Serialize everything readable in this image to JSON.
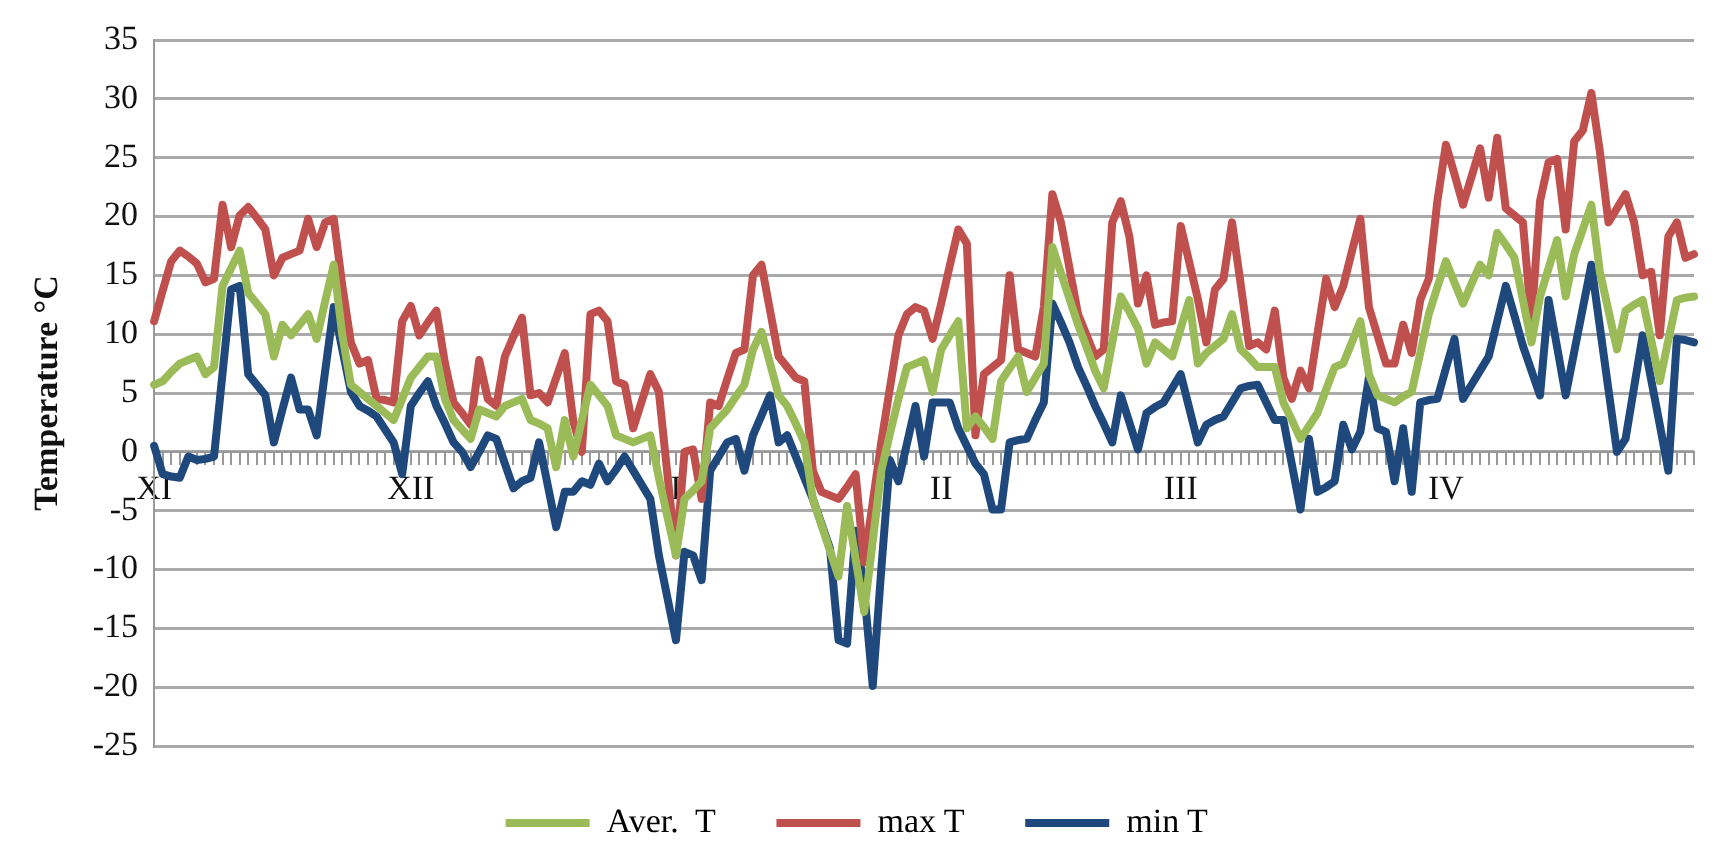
{
  "chart_data": {
    "type": "line",
    "ylabel": "Temperature °C",
    "categories": [
      "XI",
      null,
      null,
      null,
      null,
      null,
      null,
      null,
      null,
      null,
      null,
      null,
      null,
      null,
      null,
      null,
      null,
      null,
      null,
      null,
      null,
      null,
      null,
      null,
      null,
      null,
      null,
      null,
      null,
      null,
      "XII",
      null,
      null,
      null,
      null,
      null,
      null,
      null,
      null,
      null,
      null,
      null,
      null,
      null,
      null,
      null,
      null,
      null,
      null,
      null,
      null,
      null,
      null,
      null,
      null,
      null,
      null,
      null,
      null,
      null,
      null,
      "I",
      null,
      null,
      null,
      null,
      null,
      null,
      null,
      null,
      null,
      null,
      null,
      null,
      null,
      null,
      null,
      null,
      null,
      null,
      null,
      null,
      null,
      null,
      null,
      null,
      null,
      null,
      null,
      null,
      null,
      null,
      "II",
      null,
      null,
      null,
      null,
      null,
      null,
      null,
      null,
      null,
      null,
      null,
      null,
      null,
      null,
      null,
      null,
      null,
      null,
      null,
      null,
      null,
      null,
      null,
      null,
      null,
      null,
      null,
      "III",
      null,
      null,
      null,
      null,
      null,
      null,
      null,
      null,
      null,
      null,
      null,
      null,
      null,
      null,
      null,
      null,
      null,
      null,
      null,
      null,
      null,
      null,
      null,
      null,
      null,
      null,
      null,
      null,
      null,
      null,
      "IV",
      null,
      null,
      null,
      null,
      null,
      null,
      null,
      null,
      null,
      null,
      null,
      null,
      null,
      null,
      null,
      null,
      null,
      null,
      null,
      null,
      null,
      null,
      null,
      null,
      null,
      null,
      null,
      null,
      null
    ],
    "ylim": [
      -25,
      35
    ],
    "yticks": [
      -25,
      -20,
      -15,
      -10,
      -5,
      0,
      5,
      10,
      15,
      20,
      25,
      30,
      35
    ],
    "grid": "y",
    "legend": "bottom",
    "marker": "none",
    "line_style": "solid",
    "series": [
      {
        "name": "Aver.  T",
        "color": "#9bbb59",
        "values": [
          5.7,
          6,
          6.8,
          7.5,
          7.8,
          8.1,
          6.6,
          7.2,
          14.1,
          15.6,
          17.1,
          13.5,
          12.6,
          11.7,
          8.1,
          10.8,
          9.9,
          10.8,
          11.7,
          9.6,
          12.8,
          15.9,
          9.9,
          5.7,
          5.1,
          4.5,
          3.9,
          3.3,
          2.7,
          4.5,
          6.3,
          7.2,
          8.1,
          8.1,
          4.5,
          2.7,
          1.9,
          1.1,
          3.6,
          3.3,
          3,
          3.9,
          4.2,
          4.5,
          2.7,
          2.4,
          2,
          -1.3,
          2.7,
          -0.4,
          2.7,
          5.7,
          4.8,
          3.9,
          1.4,
          1.1,
          0.8,
          1.1,
          1.4,
          -2.2,
          -5.5,
          -8.8,
          -4,
          -3.3,
          -2.5,
          2,
          2.8,
          3.6,
          4.7,
          5.7,
          8.7,
          10.2,
          7.5,
          4.8,
          3.9,
          2.4,
          0.8,
          -4,
          -6.2,
          -8.4,
          -10.6,
          -4.6,
          -9.1,
          -13.6,
          -7.6,
          -1.6,
          1.5,
          4.5,
          7.2,
          7.5,
          7.8,
          5.1,
          8.7,
          9.9,
          11.1,
          2,
          3,
          2.1,
          1.1,
          6,
          7.1,
          8.1,
          5.1,
          6.3,
          7.5,
          17.4,
          15.2,
          13,
          10.8,
          8.9,
          6.9,
          5.4,
          9.3,
          13.2,
          11.9,
          10.5,
          7.5,
          9.3,
          8.7,
          8.1,
          10.5,
          12.9,
          7.5,
          8.4,
          9,
          9.6,
          11.7,
          8.7,
          8,
          7.2,
          7.2,
          7.2,
          4.2,
          2.7,
          1.1,
          2.2,
          3.3,
          5.3,
          7.2,
          7.5,
          9.3,
          11.1,
          6.6,
          4.8,
          4.5,
          4.2,
          4.7,
          5.1,
          8.4,
          11.7,
          14,
          16.2,
          14.4,
          12.6,
          14.3,
          15.9,
          15,
          18.6,
          17.6,
          16.5,
          12.9,
          9.3,
          13.2,
          15.6,
          18,
          13.2,
          16.8,
          18.9,
          21,
          15.3,
          12,
          8.7,
          12,
          12.5,
          12.9,
          9.5,
          6,
          9.5,
          12.9,
          13.1,
          13.2
        ]
      },
      {
        "name": "max T",
        "color": "#c0504d",
        "values": [
          11.1,
          13.7,
          16.2,
          17.1,
          16.6,
          16,
          14.4,
          14.7,
          21,
          17.4,
          20.1,
          20.8,
          19.9,
          18.9,
          15,
          16.5,
          16.8,
          17.1,
          19.8,
          17.4,
          19.5,
          19.8,
          14.1,
          9.3,
          7.5,
          7.8,
          4.5,
          4.4,
          4.2,
          11.1,
          12.4,
          9.9,
          11,
          12,
          7.5,
          4.2,
          3.3,
          2.3,
          7.8,
          4.5,
          3.9,
          8.1,
          9.8,
          11.4,
          4.8,
          5,
          4.2,
          6.3,
          8.4,
          2.6,
          0,
          11.7,
          12,
          11.1,
          6,
          5.7,
          2,
          4.3,
          6.6,
          5.1,
          -1.9,
          -8.8,
          0,
          0.2,
          -4,
          4.2,
          3.9,
          6.2,
          8.4,
          8.7,
          15,
          15.9,
          12,
          8.1,
          7.2,
          6.3,
          6,
          -1.6,
          -3.4,
          -3.7,
          -4,
          -3,
          -1.9,
          -9.4,
          -4.3,
          0.8,
          5.4,
          9.9,
          11.7,
          12.3,
          12,
          9.6,
          12.6,
          15.8,
          18.9,
          17.7,
          1.4,
          6.6,
          7.2,
          7.8,
          15,
          8.7,
          8.4,
          8.1,
          12.3,
          21.9,
          19.5,
          15.6,
          11.7,
          9.9,
          8.1,
          8.7,
          19.5,
          21.3,
          18.3,
          12.6,
          15,
          10.8,
          11,
          11.1,
          19.2,
          16.1,
          13,
          9.3,
          13.8,
          14.7,
          19.5,
          14.3,
          9,
          9.3,
          8.7,
          12,
          6.3,
          4.5,
          6.9,
          5.4,
          10.1,
          14.7,
          12.3,
          14.1,
          17,
          19.8,
          12.3,
          9.9,
          7.5,
          7.5,
          10.8,
          8.4,
          12.9,
          14.7,
          21.3,
          26.1,
          23.6,
          21,
          23.4,
          25.8,
          21.6,
          26.7,
          20.7,
          20.1,
          19.5,
          11.1,
          21.3,
          24.6,
          24.9,
          18.9,
          26.4,
          27.3,
          30.5,
          25.5,
          19.5,
          20.7,
          21.9,
          19.5,
          15,
          15.3,
          9.9,
          18.3,
          19.5,
          16.5,
          16.8
        ]
      },
      {
        "name": "min T",
        "color": "#1f497d",
        "values": [
          0.5,
          -1.9,
          -2.1,
          -2.2,
          -0.4,
          -0.7,
          -0.6,
          -0.4,
          6.7,
          13.8,
          14.1,
          6.6,
          5.7,
          4.8,
          0.8,
          3.6,
          6.3,
          3.6,
          3.6,
          1.4,
          6.9,
          12.3,
          8.7,
          5.1,
          3.9,
          3.5,
          3,
          1.9,
          0.8,
          -1.9,
          3.9,
          5,
          6,
          3.9,
          2.4,
          0.8,
          0,
          -1.3,
          0,
          1.4,
          1.1,
          -1,
          -3.1,
          -2.5,
          -2.2,
          0.8,
          -2.8,
          -6.4,
          -3.4,
          -3.4,
          -2.5,
          -2.8,
          -1,
          -2.5,
          -1.5,
          -0.4,
          -1.6,
          -2.8,
          -4,
          -8.8,
          -12.4,
          -16,
          -8.5,
          -8.8,
          -10.9,
          -1.6,
          -0.4,
          0.8,
          1.1,
          -1.6,
          1.4,
          3.1,
          4.8,
          0.8,
          1.4,
          -0.4,
          -2.2,
          -4,
          -6.1,
          -8.2,
          -16,
          -16.3,
          -6.7,
          -11.8,
          -19.9,
          -10,
          -0.7,
          -2.5,
          0.7,
          3.9,
          -0.4,
          4.2,
          4.2,
          4.2,
          2,
          0.5,
          -1,
          -1.9,
          -4.9,
          -4.9,
          0.8,
          1,
          1.1,
          2.7,
          4.2,
          12.6,
          11,
          9.3,
          7.2,
          5.6,
          3.9,
          2.4,
          0.8,
          4.8,
          2.5,
          0.2,
          3.3,
          3.8,
          4.2,
          5.4,
          6.6,
          3.7,
          0.8,
          2.3,
          2.7,
          3,
          4.2,
          5.4,
          5.6,
          5.7,
          4.2,
          2.7,
          2.7,
          -1.1,
          -4.9,
          1.1,
          -3.4,
          -3,
          -2.5,
          2.3,
          0.2,
          1.7,
          6.3,
          2,
          1.7,
          -2.5,
          2,
          -3.4,
          4.2,
          4.4,
          4.5,
          7.1,
          9.6,
          4.5,
          5.7,
          6.9,
          8.1,
          11.1,
          14.1,
          11.6,
          9,
          6.9,
          4.8,
          12.9,
          8.9,
          4.8,
          8.5,
          12.2,
          15.9,
          10.6,
          5.3,
          0,
          1.1,
          5.5,
          9.9,
          6.1,
          2.3,
          -1.6,
          9.6,
          9.5,
          9.3
        ]
      }
    ]
  }
}
